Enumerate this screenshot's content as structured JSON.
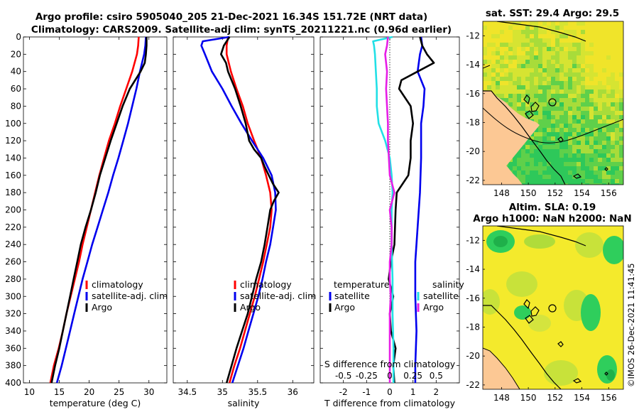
{
  "title": {
    "line1": "Argo profile: csiro 5905040_205 21-Dec-2021 16.34S 151.72E (NRT data)",
    "line2": "Climatology: CARS2009. Satellite-adj clim: synTS_20211221.nc (0.96d earlier)"
  },
  "copyright": "©IMOS 26-Dec-2021 11:41:45",
  "colors": {
    "climatology": "#ff0000",
    "satellite": "#0000ee",
    "argo": "#000000",
    "salinity_sat": "#22e0e6",
    "salinity_argo": "#e61ee6"
  },
  "maps": [
    {
      "title": "sat. SST: 29.4 Argo: 29.5",
      "xticks": [
        "148",
        "150",
        "152",
        "154",
        "156"
      ],
      "yticks": [
        "-12",
        "-14",
        "-16",
        "-18",
        "-20",
        "-22"
      ]
    },
    {
      "title_line1": "Altim. SLA: 0.19",
      "title_line2": "Argo h1000: NaN h2000: NaN",
      "xticks": [
        "148",
        "150",
        "152",
        "154",
        "156"
      ],
      "yticks": [
        "-12",
        "-14",
        "-16",
        "-18",
        "-20",
        "-22"
      ]
    }
  ],
  "chart_data": [
    {
      "type": "line",
      "name": "temperature",
      "xlabel": "temperature (deg C)",
      "ylabel": "depth",
      "xlim": [
        9,
        33
      ],
      "ylim": [
        0,
        400
      ],
      "xticks": [
        10,
        15,
        20,
        25,
        30
      ],
      "yticks": [
        0,
        20,
        40,
        60,
        80,
        100,
        120,
        140,
        160,
        180,
        200,
        220,
        240,
        260,
        280,
        300,
        320,
        340,
        360,
        380,
        400
      ],
      "legend": [
        "climatology",
        "satellite-adj. clim",
        "Argo"
      ],
      "series": [
        {
          "name": "climatology",
          "color": "red",
          "depth": [
            0,
            10,
            20,
            40,
            60,
            80,
            100,
            120,
            140,
            160,
            180,
            200,
            220,
            240,
            260,
            280,
            300,
            320,
            340,
            360,
            380,
            400
          ],
          "values": [
            28.3,
            28.2,
            28.0,
            27.2,
            26.2,
            25.2,
            24.3,
            23.3,
            22.5,
            21.7,
            21.0,
            20.3,
            19.6,
            18.9,
            18.3,
            17.6,
            16.9,
            16.2,
            15.6,
            14.9,
            14.1,
            13.5
          ]
        },
        {
          "name": "satellite-adj. clim",
          "color": "blue",
          "depth": [
            0,
            10,
            20,
            40,
            60,
            80,
            100,
            120,
            140,
            160,
            180,
            200,
            220,
            240,
            260,
            280,
            300,
            320,
            340,
            360,
            380,
            400
          ],
          "values": [
            29.5,
            29.4,
            29.2,
            28.5,
            27.9,
            27.2,
            26.5,
            25.7,
            24.9,
            24.0,
            23.2,
            22.3,
            21.4,
            20.5,
            19.7,
            18.9,
            18.2,
            17.5,
            16.8,
            16.1,
            15.4,
            14.6
          ]
        },
        {
          "name": "Argo",
          "color": "black",
          "depth": [
            0,
            10,
            20,
            30,
            40,
            60,
            80,
            100,
            120,
            140,
            160,
            180,
            200,
            220,
            240,
            260,
            280,
            300,
            320,
            340,
            360,
            380,
            400
          ],
          "values": [
            29.6,
            29.6,
            29.5,
            29.3,
            28.6,
            26.8,
            25.6,
            24.6,
            23.6,
            22.7,
            21.8,
            21.1,
            20.3,
            19.4,
            18.6,
            18.0,
            17.4,
            16.8,
            16.2,
            15.6,
            15.0,
            14.3,
            13.7
          ]
        }
      ]
    },
    {
      "type": "line",
      "name": "salinity",
      "xlabel": "salinity",
      "ylabel": "depth",
      "xlim": [
        34.3,
        36.3
      ],
      "ylim": [
        0,
        400
      ],
      "xticks": [
        34.5,
        35,
        35.5,
        36
      ],
      "xtick_labels": [
        "34.5",
        "35",
        "35.5",
        "36"
      ],
      "yticks": [
        0,
        20,
        40,
        60,
        80,
        100,
        120,
        140,
        160,
        180,
        200,
        220,
        240,
        260,
        280,
        300,
        320,
        340,
        360,
        380,
        400
      ],
      "legend": [
        "climatology",
        "satellite-adj. clim",
        "Argo"
      ],
      "series": [
        {
          "name": "climatology",
          "color": "red",
          "depth": [
            0,
            10,
            20,
            40,
            60,
            80,
            100,
            120,
            140,
            160,
            180,
            200,
            220,
            240,
            260,
            280,
            300,
            320,
            340,
            360,
            380,
            400
          ],
          "values": [
            35.08,
            35.06,
            35.06,
            35.12,
            35.2,
            35.29,
            35.36,
            35.45,
            35.55,
            35.62,
            35.68,
            35.7,
            35.68,
            35.63,
            35.58,
            35.52,
            35.46,
            35.39,
            35.32,
            35.25,
            35.17,
            35.1
          ]
        },
        {
          "name": "satellite-adj. clim",
          "color": "blue",
          "depth": [
            0,
            5,
            10,
            20,
            40,
            60,
            80,
            100,
            120,
            140,
            160,
            180,
            200,
            220,
            240,
            260,
            280,
            300,
            320,
            340,
            360,
            380,
            400
          ],
          "values": [
            35.1,
            34.72,
            34.7,
            34.75,
            34.85,
            35.0,
            35.13,
            35.27,
            35.42,
            35.58,
            35.7,
            35.75,
            35.76,
            35.72,
            35.68,
            35.62,
            35.57,
            35.51,
            35.44,
            35.37,
            35.3,
            35.22,
            35.14
          ]
        },
        {
          "name": "Argo",
          "color": "black",
          "depth": [
            0,
            10,
            20,
            30,
            40,
            60,
            80,
            100,
            120,
            130,
            140,
            150,
            160,
            170,
            180,
            190,
            200,
            220,
            240,
            260,
            280,
            300,
            320,
            340,
            360,
            380,
            400
          ],
          "values": [
            35.1,
            35.02,
            34.98,
            35.05,
            35.08,
            35.18,
            35.26,
            35.33,
            35.38,
            35.45,
            35.55,
            35.6,
            35.66,
            35.72,
            35.8,
            35.73,
            35.68,
            35.64,
            35.6,
            35.55,
            35.48,
            35.42,
            35.36,
            35.28,
            35.2,
            35.13,
            35.06
          ]
        }
      ]
    },
    {
      "type": "line",
      "name": "difference from climatology",
      "xlabel": "T difference from climatology",
      "top_xlabel": "S difference from climatology",
      "ylabel": "depth",
      "xlim": [
        -3,
        3
      ],
      "ylim": [
        0,
        400
      ],
      "xticks": [
        -2,
        -1,
        0,
        1,
        2
      ],
      "xtick_labels": [
        "-2",
        "-1",
        "0",
        "1",
        "2"
      ],
      "s_xticks": [
        -0.5,
        -0.25,
        0,
        0.25,
        0.5
      ],
      "s_xtick_labels": [
        "-0.5",
        "-0.25",
        "0",
        "0.25",
        "0.5"
      ],
      "yticks": [
        0,
        20,
        40,
        60,
        80,
        100,
        120,
        140,
        160,
        180,
        200,
        220,
        240,
        260,
        280,
        300,
        320,
        340,
        360,
        380,
        400
      ],
      "legend": {
        "temperature_title": "temperature",
        "salinity_title": "salinity",
        "temperature": [
          "satellite",
          "Argo"
        ],
        "salinity": [
          "satellite",
          "Argo"
        ]
      },
      "series": [
        {
          "name": "temperature satellite",
          "color": "blue",
          "depth": [
            0,
            10,
            20,
            40,
            60,
            80,
            100,
            140,
            180,
            220,
            260,
            300,
            340,
            380,
            400
          ],
          "values": [
            1.35,
            1.4,
            1.3,
            1.2,
            1.5,
            1.45,
            1.35,
            1.35,
            1.3,
            1.2,
            1.1,
            1.1,
            1.15,
            1.1,
            1.1
          ]
        },
        {
          "name": "temperature Argo",
          "color": "black",
          "depth": [
            0,
            10,
            20,
            30,
            40,
            50,
            60,
            80,
            100,
            120,
            140,
            160,
            180,
            200,
            240,
            260,
            280,
            300,
            320,
            340,
            360,
            380,
            400
          ],
          "values": [
            1.3,
            1.4,
            1.6,
            1.9,
            1.2,
            0.5,
            0.4,
            0.9,
            1.0,
            0.9,
            0.9,
            0.8,
            0.3,
            0.25,
            0.2,
            0.05,
            -0.05,
            0.15,
            0.0,
            0.05,
            0.25,
            0.15,
            0.2
          ]
        },
        {
          "name": "salinity satellite",
          "color": "cyan",
          "depth": [
            0,
            5,
            10,
            20,
            40,
            60,
            80,
            100,
            120,
            140,
            160,
            180,
            200,
            240,
            280,
            320,
            360,
            400
          ],
          "values": [
            0.03,
            -0.18,
            -0.17,
            -0.16,
            -0.15,
            -0.14,
            -0.14,
            -0.12,
            -0.05,
            0.0,
            0.02,
            0.03,
            0.02,
            0.02,
            0.03,
            0.03,
            0.04,
            0.04
          ]
        },
        {
          "name": "salinity Argo",
          "color": "magenta",
          "depth": [
            0,
            10,
            20,
            40,
            60,
            80,
            100,
            120,
            140,
            160,
            180,
            200,
            220,
            240,
            260,
            280,
            300,
            320,
            340,
            360,
            380,
            400
          ],
          "values": [
            -0.02,
            -0.03,
            -0.05,
            -0.03,
            -0.04,
            -0.03,
            -0.02,
            -0.02,
            -0.01,
            0.0,
            0.05,
            0.0,
            0.02,
            0.02,
            0.0,
            0.0,
            0.01,
            0.0,
            0.0,
            0.0,
            0.0,
            0.0
          ]
        }
      ]
    }
  ]
}
